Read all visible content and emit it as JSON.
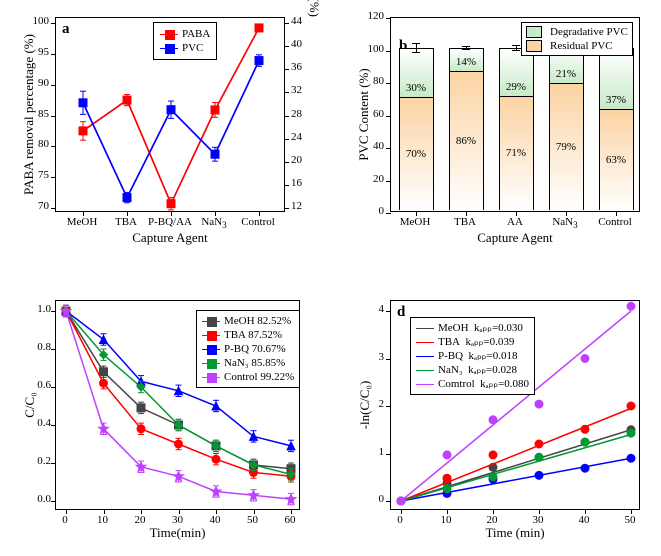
{
  "panels": {
    "a": {
      "label": "a",
      "x_title": "Capture Agent",
      "left_y_title": "PABA removal percentage (%)",
      "right_y_title": "PVC removal percentage (%)",
      "left_y": {
        "min": 70,
        "max": 100,
        "step": 5
      },
      "right_y": {
        "min": 12,
        "max": 44,
        "step": 4
      },
      "categories": [
        "MeOH",
        "TBA",
        "P-BQ/AA",
        "NaN",
        "Control"
      ],
      "legend": [
        {
          "name": "PABA",
          "color": "#ff0000"
        },
        {
          "name": "PVC",
          "color": "#0000ff"
        }
      ],
      "series": {
        "PABA": [
          82.5,
          87.5,
          70.7,
          85.9,
          99.2
        ],
        "PABA_err": [
          1.5,
          0.9,
          1.0,
          1.2,
          0.5
        ],
        "PVC_right": [
          30.2,
          13.8,
          29.0,
          21.3,
          37.5
        ],
        "PVC_err": [
          2.0,
          0.9,
          1.5,
          1.2,
          1.0
        ]
      },
      "label_fontsize": 13,
      "tick_fontsize": 11
    },
    "b": {
      "label": "b",
      "x_title": "Capture Agent",
      "y_title": "PVC Content (%)",
      "y": {
        "min": 0,
        "max": 120,
        "step": 20
      },
      "categories": [
        "MeOH",
        "TBA",
        "AA",
        "NaN",
        "Control"
      ],
      "legend": [
        {
          "name": "Degradative PVC",
          "color": "#c8eac8"
        },
        {
          "name": "Residual PVC",
          "color": "#fbd3a2"
        }
      ],
      "bars": [
        {
          "residual": 70,
          "degrad": 30,
          "err": 2.5,
          "resColor": "#fbd3a2",
          "degColor": "#c8eac8"
        },
        {
          "residual": 86,
          "degrad": 14,
          "err": 0.8,
          "resColor": "#fbd3a2",
          "degColor": "#c8eac8"
        },
        {
          "residual": 71,
          "degrad": 29,
          "err": 1.5,
          "resColor": "#fbd3a2",
          "degColor": "#c8eac8"
        },
        {
          "residual": 79,
          "degrad": 21,
          "err": 1.3,
          "resColor": "#fbd3a2",
          "degColor": "#c8eac8"
        },
        {
          "residual": 63,
          "degrad": 37,
          "err": 1.0,
          "resColor": "#fbd3a2",
          "degColor": "#c8eac8"
        }
      ],
      "bar_total": 100
    },
    "c": {
      "label": "c",
      "x_title": "Time(min)",
      "y_title": "C/C₀",
      "x": {
        "min": 0,
        "max": 60,
        "step": 10
      },
      "y": {
        "min": 0.0,
        "max": 1.0,
        "step": 0.2
      },
      "legend": [
        {
          "name": "MeOH  82.52%",
          "color": "#444444"
        },
        {
          "name": "TBA   87.52%",
          "color": "#ff0000"
        },
        {
          "name": "P-BQ  70.67%",
          "color": "#0000ff"
        },
        {
          "name": "NaN3  85.85%",
          "color": "#009933"
        },
        {
          "name": "Control 99.22%",
          "color": "#c040ff"
        }
      ],
      "series": {
        "MeOH": {
          "color": "#444444",
          "marker": "square",
          "pts": [
            [
              0,
              1.0
            ],
            [
              10,
              0.68
            ],
            [
              20,
              0.49
            ],
            [
              30,
              0.4
            ],
            [
              40,
              0.29
            ],
            [
              50,
              0.19
            ],
            [
              60,
              0.17
            ]
          ]
        },
        "TBA": {
          "color": "#ff0000",
          "marker": "circle",
          "pts": [
            [
              0,
              1.0
            ],
            [
              10,
              0.62
            ],
            [
              20,
              0.38
            ],
            [
              30,
              0.3
            ],
            [
              40,
              0.22
            ],
            [
              50,
              0.15
            ],
            [
              60,
              0.13
            ]
          ]
        },
        "PBQ": {
          "color": "#0000ff",
          "marker": "triangle",
          "pts": [
            [
              0,
              1.0
            ],
            [
              10,
              0.85
            ],
            [
              20,
              0.63
            ],
            [
              30,
              0.58
            ],
            [
              40,
              0.5
            ],
            [
              50,
              0.34
            ],
            [
              60,
              0.29
            ]
          ]
        },
        "NaN3": {
          "color": "#009933",
          "marker": "diamond",
          "pts": [
            [
              0,
              1.0
            ],
            [
              10,
              0.77
            ],
            [
              20,
              0.6
            ],
            [
              30,
              0.4
            ],
            [
              40,
              0.29
            ],
            [
              50,
              0.19
            ],
            [
              60,
              0.14
            ]
          ]
        },
        "Control": {
          "color": "#c040ff",
          "marker": "star",
          "pts": [
            [
              0,
              1.0
            ],
            [
              10,
              0.38
            ],
            [
              20,
              0.18
            ],
            [
              30,
              0.13
            ],
            [
              40,
              0.05
            ],
            [
              50,
              0.03
            ],
            [
              60,
              0.01
            ]
          ]
        }
      },
      "err": 0.03
    },
    "d": {
      "label": "d",
      "x_title": "Time (min)",
      "y_title": "-ln(C/C₀)",
      "x": {
        "min": 0,
        "max": 50,
        "step": 10
      },
      "y": {
        "min": 0,
        "max": 4,
        "step": 1
      },
      "legend": [
        {
          "name": "MeOH",
          "k": "kₐₚₚ=0.030",
          "color": "#444444"
        },
        {
          "name": "TBA",
          "k": "kₐₚₚ=0.039",
          "color": "#ff0000"
        },
        {
          "name": "P-BQ",
          "k": "kₐₚₚ=0.018",
          "color": "#0000ff"
        },
        {
          "name": "NaN3",
          "k": "kₐₚₚ=0.028",
          "color": "#009933"
        },
        {
          "name": "Comtrol",
          "k": "kₐₚₚ=0.080",
          "color": "#c040ff"
        }
      ],
      "series": {
        "MeOH": {
          "color": "#444444",
          "slope": 0.03,
          "pts": [
            [
              0,
              0.0
            ],
            [
              10,
              0.38
            ],
            [
              20,
              0.71
            ],
            [
              30,
              0.92
            ],
            [
              40,
              1.24
            ],
            [
              50,
              1.5
            ]
          ]
        },
        "TBA": {
          "color": "#ff0000",
          "slope": 0.039,
          "pts": [
            [
              0,
              0.0
            ],
            [
              10,
              0.48
            ],
            [
              20,
              0.97
            ],
            [
              30,
              1.2
            ],
            [
              40,
              1.51
            ],
            [
              50,
              2.0
            ]
          ]
        },
        "PBQ": {
          "color": "#0000ff",
          "slope": 0.018,
          "pts": [
            [
              0,
              0.0
            ],
            [
              10,
              0.16
            ],
            [
              20,
              0.46
            ],
            [
              30,
              0.54
            ],
            [
              40,
              0.69
            ],
            [
              50,
              0.9
            ]
          ]
        },
        "NaN3": {
          "color": "#009933",
          "slope": 0.028,
          "pts": [
            [
              0,
              0.0
            ],
            [
              10,
              0.26
            ],
            [
              20,
              0.51
            ],
            [
              30,
              0.92
            ],
            [
              40,
              1.24
            ],
            [
              50,
              1.43
            ]
          ]
        },
        "Control": {
          "color": "#c040ff",
          "slope": 0.08,
          "pts": [
            [
              0,
              0.0
            ],
            [
              10,
              0.97
            ],
            [
              20,
              1.71
            ],
            [
              30,
              2.04
            ],
            [
              40,
              3.0
            ],
            [
              50,
              4.1
            ]
          ]
        }
      }
    }
  }
}
